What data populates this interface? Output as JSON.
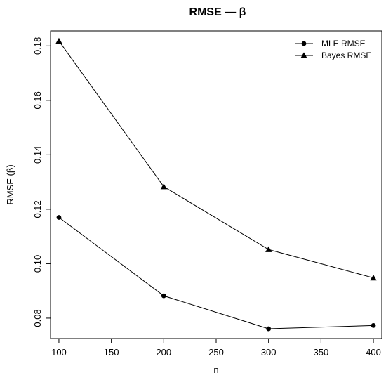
{
  "chart_data": {
    "type": "line",
    "title": "RMSE — β",
    "xlabel": "n",
    "ylabel": "RMSE (β)",
    "x": [
      100,
      200,
      300,
      400
    ],
    "xticks": [
      "100",
      "150",
      "200",
      "250",
      "300",
      "350",
      "400"
    ],
    "yticks": [
      "0.08",
      "0.10",
      "0.12",
      "0.14",
      "0.16",
      "0.18"
    ],
    "xlim": [
      92,
      408
    ],
    "ylim": [
      0.0725,
      0.1855
    ],
    "grid": false,
    "legend_position": "top-right",
    "series": [
      {
        "name": "MLE RMSE",
        "marker": "circle",
        "values": [
          0.117,
          0.0882,
          0.0761,
          0.0773
        ]
      },
      {
        "name": "Bayes RMSE",
        "marker": "triangle",
        "values": [
          0.1818,
          0.1283,
          0.1052,
          0.0948
        ]
      }
    ],
    "colors": {
      "line": "#000000",
      "background": "#ffffff"
    }
  }
}
